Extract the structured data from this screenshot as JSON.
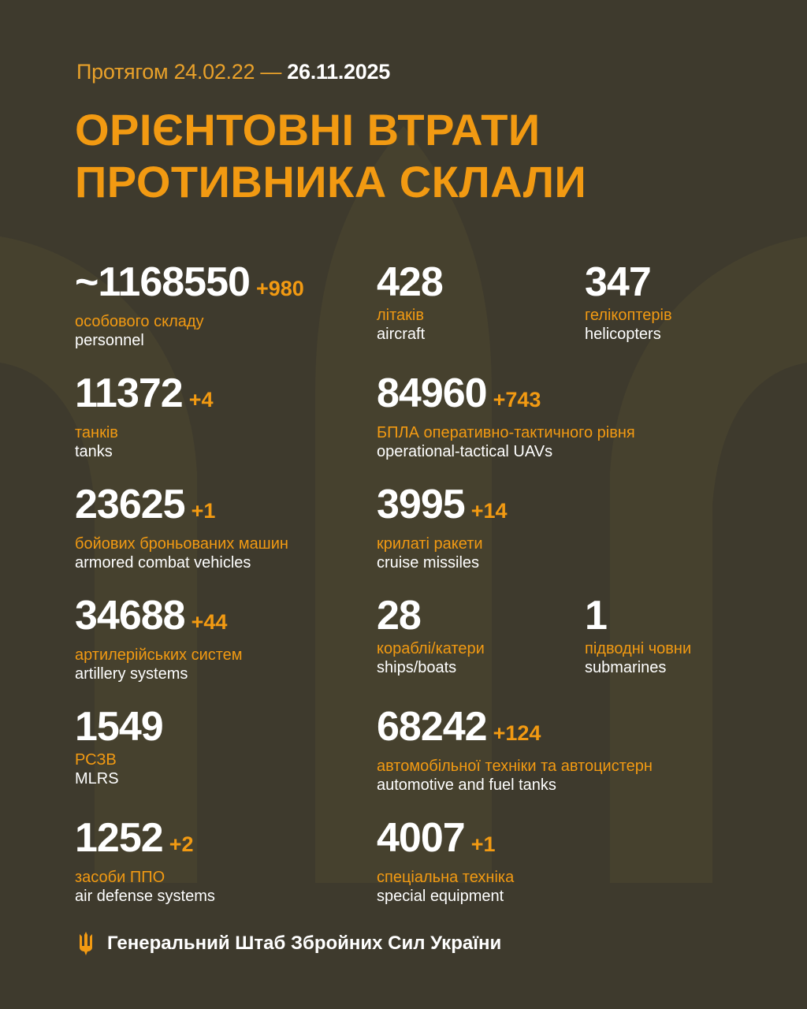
{
  "header": {
    "period_prefix": "Протягом 24.02.22 —",
    "period_end": "26.11.2025",
    "title_line1": "ОРІЄНТОВНІ ВТРАТИ",
    "title_line2": "ПРОТИВНИКА СКЛАЛИ"
  },
  "colors": {
    "background": "#3e3a2d",
    "accent": "#f29a12",
    "text": "#ffffff"
  },
  "stats": [
    {
      "value": "~1168550",
      "increment": "+980",
      "ua": "особового складу",
      "en": "personnel"
    },
    {
      "value": "428",
      "increment": "",
      "ua": "літаків",
      "en": "aircraft"
    },
    {
      "value": "347",
      "increment": "",
      "ua": "гелікоптерів",
      "en": "helicopters"
    },
    {
      "value": "11372",
      "increment": "+4",
      "ua": "танків",
      "en": "tanks"
    },
    {
      "value": "84960",
      "increment": "+743",
      "ua": "БПЛА оперативно-тактичного рівня",
      "en": "operational-tactical UAVs"
    },
    {
      "value": "23625",
      "increment": "+1",
      "ua": "бойових броньованих машин",
      "en": "armored combat vehicles"
    },
    {
      "value": "3995",
      "increment": "+14",
      "ua": "крилаті ракети",
      "en": "cruise missiles"
    },
    {
      "value": "34688",
      "increment": "+44",
      "ua": "артилерійських систем",
      "en": "artillery systems"
    },
    {
      "value": "28",
      "increment": "",
      "ua": "кораблі/катери",
      "en": "ships/boats"
    },
    {
      "value": "1",
      "increment": "",
      "ua": "підводні човни",
      "en": "submarines"
    },
    {
      "value": "1549",
      "increment": "",
      "ua": "РСЗВ",
      "en": "MLRS"
    },
    {
      "value": "68242",
      "increment": "+124",
      "ua": "автомобільної техніки та автоцистерн",
      "en": "automotive and fuel tanks"
    },
    {
      "value": "1252",
      "increment": "+2",
      "ua": "засоби ППО",
      "en": "air defense systems"
    },
    {
      "value": "4007",
      "increment": "+1",
      "ua": "спеціальна техніка",
      "en": "special equipment"
    }
  ],
  "footer": {
    "icon": "trident-icon",
    "text": "Генеральний Штаб Збройних Сил України"
  }
}
